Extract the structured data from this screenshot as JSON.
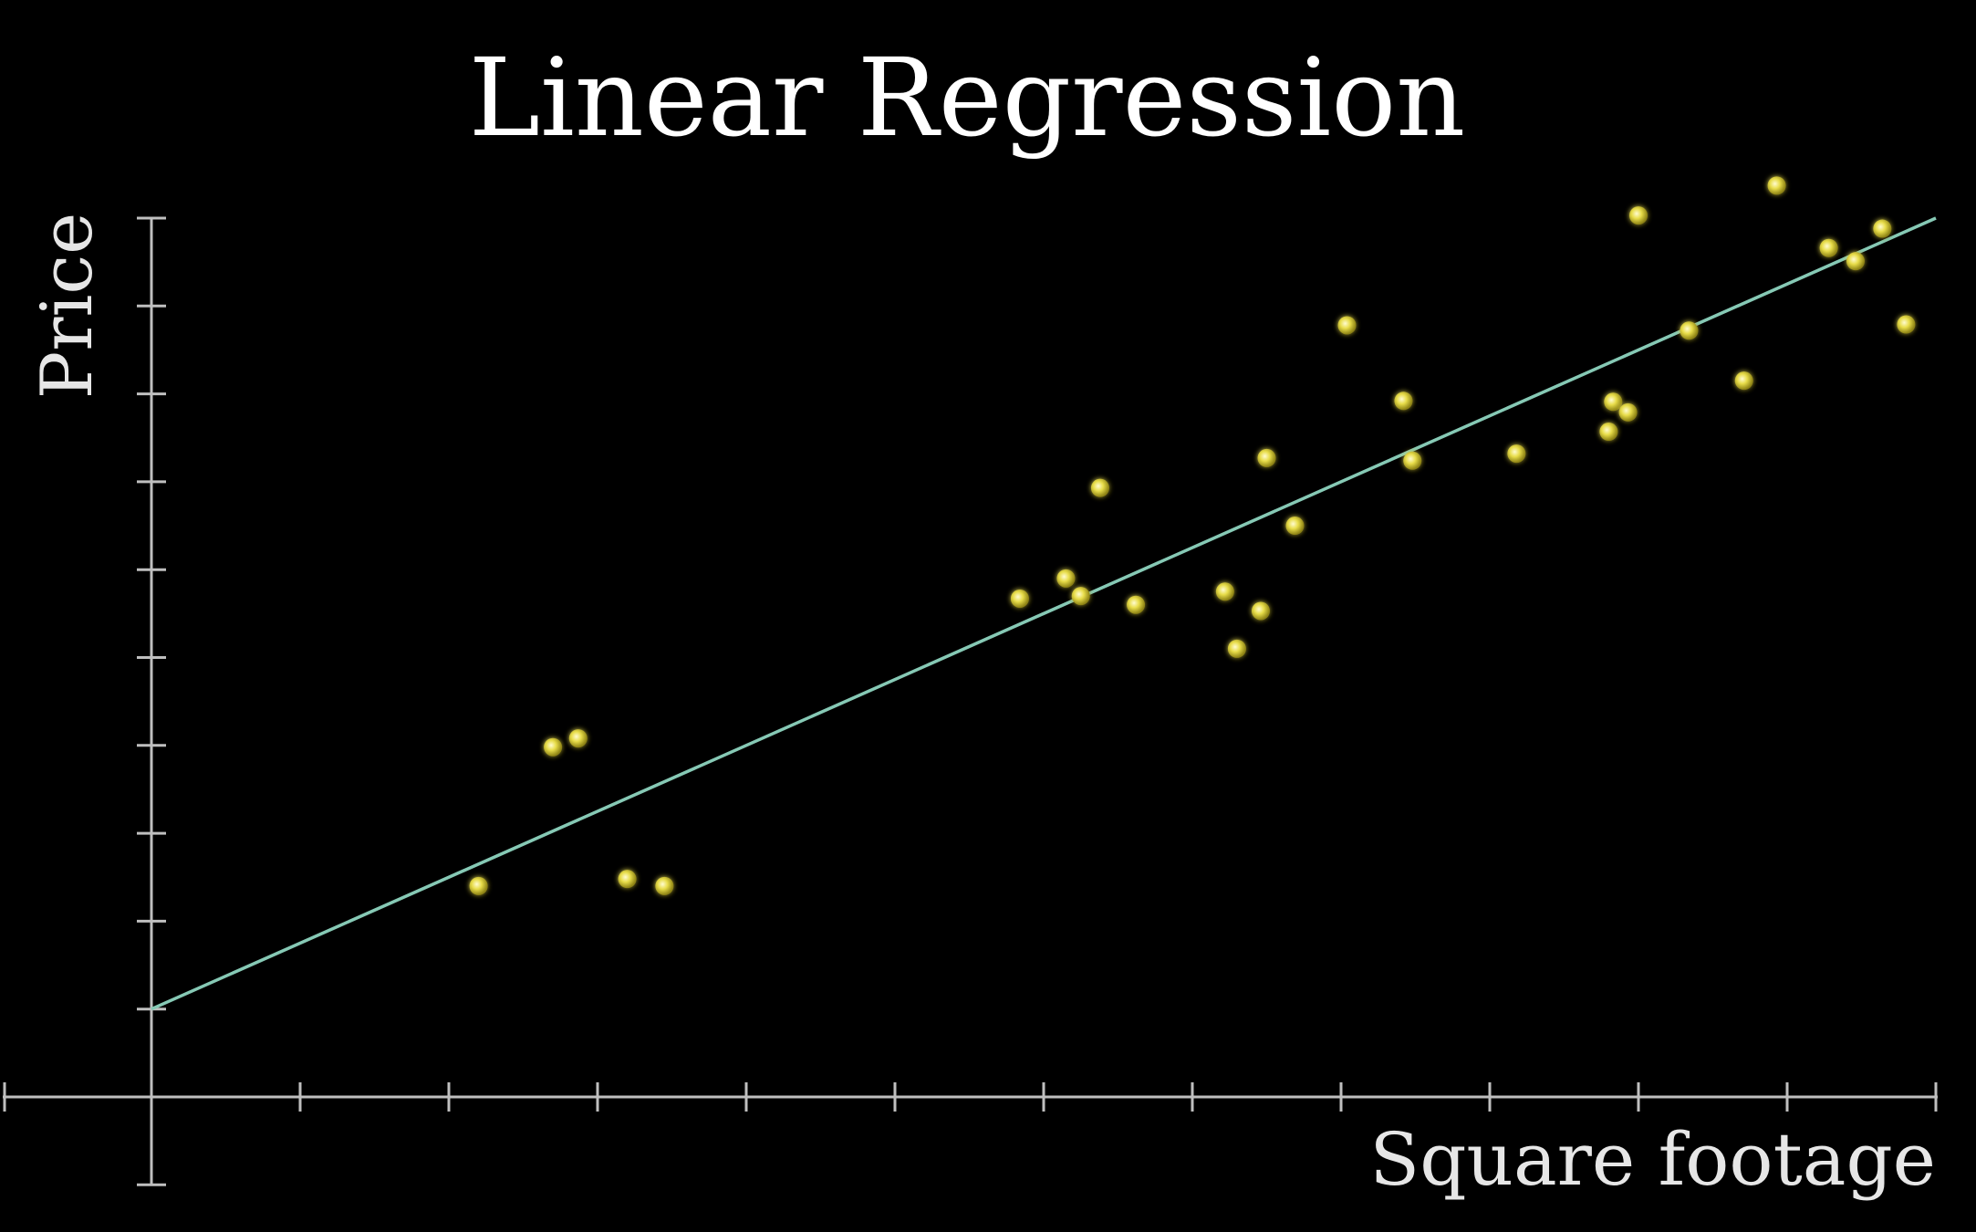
{
  "chart_data": {
    "type": "scatter",
    "title": "Linear Regression",
    "xlabel": "Square footage",
    "ylabel": "Price",
    "xlim": [
      -1,
      12
    ],
    "ylim": [
      -1,
      10
    ],
    "x_ticks": [
      1,
      2,
      3,
      4,
      5,
      6,
      7,
      8,
      9,
      10,
      11,
      12
    ],
    "y_ticks": [
      1,
      2,
      3,
      4,
      5,
      6,
      7,
      8,
      9,
      10
    ],
    "tick_labels_shown": false,
    "grid": false,
    "colors": {
      "background": "#000000",
      "axis": "#bfbfbf",
      "points": "#e8dd4a",
      "fit_line": "#86c9b5"
    },
    "fit_line": {
      "x": [
        0,
        12
      ],
      "y": [
        1,
        10
      ]
    },
    "points": [
      {
        "x": 2.2,
        "y": 2.4
      },
      {
        "x": 2.7,
        "y": 3.98
      },
      {
        "x": 2.87,
        "y": 4.08
      },
      {
        "x": 3.2,
        "y": 2.48
      },
      {
        "x": 3.45,
        "y": 2.4
      },
      {
        "x": 5.84,
        "y": 5.67
      },
      {
        "x": 6.15,
        "y": 5.9
      },
      {
        "x": 6.25,
        "y": 5.7
      },
      {
        "x": 6.38,
        "y": 6.93
      },
      {
        "x": 6.62,
        "y": 5.6
      },
      {
        "x": 7.22,
        "y": 5.75
      },
      {
        "x": 7.3,
        "y": 5.1
      },
      {
        "x": 7.46,
        "y": 5.53
      },
      {
        "x": 7.5,
        "y": 7.27
      },
      {
        "x": 7.69,
        "y": 6.5
      },
      {
        "x": 8.04,
        "y": 8.78
      },
      {
        "x": 8.42,
        "y": 7.92
      },
      {
        "x": 8.48,
        "y": 7.24
      },
      {
        "x": 9.18,
        "y": 7.32
      },
      {
        "x": 9.8,
        "y": 7.57
      },
      {
        "x": 9.83,
        "y": 7.91
      },
      {
        "x": 9.93,
        "y": 7.79
      },
      {
        "x": 10.0,
        "y": 10.03
      },
      {
        "x": 10.34,
        "y": 8.72
      },
      {
        "x": 10.71,
        "y": 8.15
      },
      {
        "x": 10.93,
        "y": 10.37
      },
      {
        "x": 11.28,
        "y": 9.66
      },
      {
        "x": 11.46,
        "y": 9.51
      },
      {
        "x": 11.64,
        "y": 9.88
      },
      {
        "x": 11.8,
        "y": 8.79
      }
    ]
  }
}
